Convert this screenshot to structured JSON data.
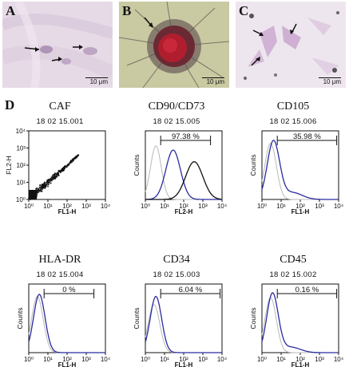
{
  "photos": [
    {
      "letter": "A",
      "scale": "10 μm"
    },
    {
      "letter": "B",
      "scale": "10 μm"
    },
    {
      "letter": "C",
      "scale": "10 μm"
    }
  ],
  "section_label": "D",
  "colors": {
    "sample": "#2a2aa0",
    "control": "#b8b8b8",
    "second": "#111111"
  },
  "chart_data": [
    {
      "type": "scatter",
      "title": "CAF",
      "sample_id": "18 02 15.001",
      "xlabel": "FL1-H",
      "ylabel": "FL2-H",
      "x_ticks": [
        "10⁰",
        "10¹",
        "10²",
        "10³",
        "10⁴"
      ],
      "y_ticks": [
        "10⁰",
        "10¹",
        "10²",
        "10³",
        "10⁴"
      ],
      "xlim": [
        0,
        4
      ],
      "ylim": [
        0,
        4
      ]
    },
    {
      "type": "line",
      "title": "CD90/CD73",
      "sample_id": "18 02 15.005",
      "xlabel": "FL2-H",
      "ylabel": "Counts",
      "gate_percent": "97.38 %",
      "gate_range": [
        0.8,
        3.4
      ],
      "x_ticks": [
        "10⁰",
        "10¹",
        "10²",
        "10³",
        "10⁴"
      ],
      "xlim": [
        0,
        4
      ]
    },
    {
      "type": "line",
      "title": "CD105",
      "sample_id": "18 02 15.006",
      "xlabel": "FL1-H",
      "ylabel": "Counts",
      "gate_percent": "35.98 %",
      "gate_range": [
        0.8,
        3.9
      ],
      "x_ticks": [
        "10⁰",
        "10¹",
        "10²",
        "10³",
        "10⁴"
      ],
      "xlim": [
        0,
        4
      ]
    },
    {
      "type": "line",
      "title": "HLA-DR",
      "sample_id": "18 02 15.004",
      "xlabel": "FL1-H",
      "ylabel": "Counts",
      "gate_percent": "0 %",
      "gate_range": [
        0.8,
        3.4
      ],
      "x_ticks": [
        "10⁰",
        "10¹",
        "10²",
        "10³",
        "10⁴"
      ],
      "xlim": [
        0,
        4
      ]
    },
    {
      "type": "line",
      "title": "CD34",
      "sample_id": "18 02 15.003",
      "xlabel": "FL1-H",
      "ylabel": "Counts",
      "gate_percent": "6.04 %",
      "gate_range": [
        0.8,
        3.9
      ],
      "x_ticks": [
        "10⁰",
        "10¹",
        "10²",
        "10³",
        "10⁴"
      ],
      "xlim": [
        0,
        4
      ]
    },
    {
      "type": "line",
      "title": "CD45",
      "sample_id": "18 02 15.002",
      "xlabel": "FL1-H",
      "ylabel": "Counts",
      "gate_percent": "0.16 %",
      "gate_range": [
        0.8,
        3.9
      ],
      "x_ticks": [
        "10⁰",
        "10¹",
        "10²",
        "10³",
        "10⁴"
      ],
      "xlim": [
        0,
        4
      ]
    }
  ]
}
